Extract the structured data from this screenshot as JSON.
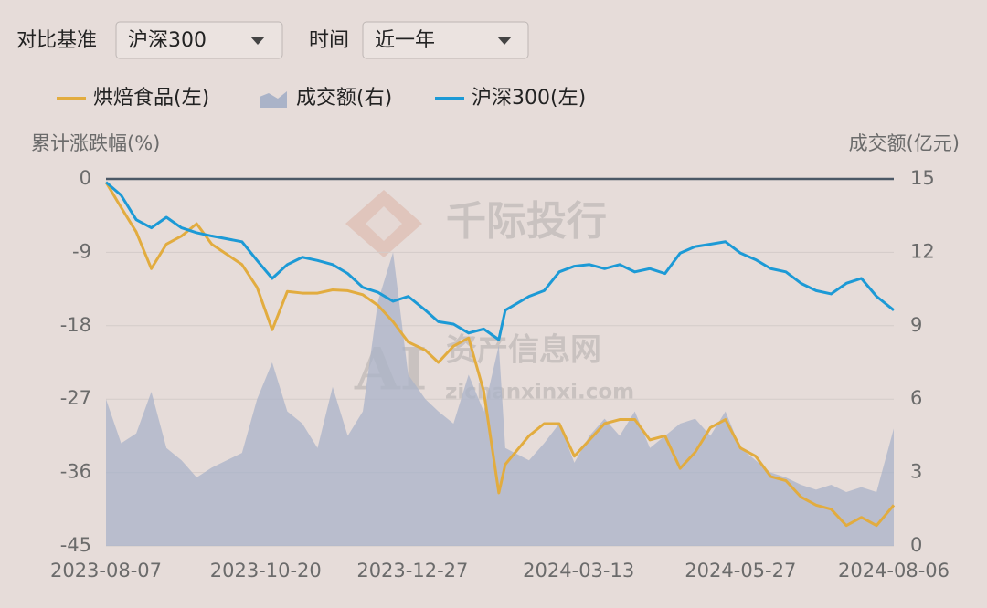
{
  "controls": {
    "benchmark_label": "对比基准",
    "benchmark_value": "沪深300",
    "period_label": "时间",
    "period_value": "近一年"
  },
  "watermarks": [
    "千际投行",
    "资产信息网",
    "zichanxinxi.com"
  ],
  "chart_data": {
    "type": "line",
    "ylabel": "累计涨跌幅(%)",
    "y2label": "成交额(亿元)",
    "x": [
      "2023-08-07",
      "2023-08-14",
      "2023-08-21",
      "2023-08-28",
      "2023-09-04",
      "2023-09-11",
      "2023-09-18",
      "2023-09-25",
      "2023-10-09",
      "2023-10-16",
      "2023-10-23",
      "2023-10-30",
      "2023-11-06",
      "2023-11-13",
      "2023-11-20",
      "2023-11-27",
      "2023-12-04",
      "2023-12-11",
      "2023-12-18",
      "2023-12-25",
      "2024-01-02",
      "2024-01-08",
      "2024-01-15",
      "2024-01-22",
      "2024-01-29",
      "2024-02-05",
      "2024-02-08",
      "2024-02-19",
      "2024-02-26",
      "2024-03-04",
      "2024-03-11",
      "2024-03-18",
      "2024-03-25",
      "2024-04-01",
      "2024-04-08",
      "2024-04-15",
      "2024-04-22",
      "2024-04-29",
      "2024-05-06",
      "2024-05-13",
      "2024-05-20",
      "2024-05-27",
      "2024-06-03",
      "2024-06-10",
      "2024-06-17",
      "2024-06-24",
      "2024-07-01",
      "2024-07-08",
      "2024-07-15",
      "2024-07-22",
      "2024-07-29",
      "2024-08-06"
    ],
    "xlim": [
      "2023-08-07",
      "2024-08-06"
    ],
    "xticks": [
      "2023-08-07",
      "2023-10-20",
      "2023-12-27",
      "2024-03-13",
      "2024-05-27",
      "2024-08-06"
    ],
    "ylim": [
      -45,
      0
    ],
    "yticks": [
      0,
      -9,
      -18,
      -27,
      -36,
      -45
    ],
    "y2lim": [
      0,
      15
    ],
    "y2ticks": [
      15,
      12,
      9,
      6,
      3,
      0
    ],
    "grid": true,
    "series": [
      {
        "name": "烘焙食品(左)",
        "color": "#e2ac3f",
        "values": [
          -0.4,
          -3.5,
          -6.5,
          -11,
          -8,
          -7,
          -5.5,
          -8,
          -10.5,
          -13.3,
          -18.5,
          -13.8,
          -14,
          -14,
          -13.6,
          -13.7,
          -14.2,
          -15.5,
          -17.5,
          -20,
          -21,
          -22.5,
          -20.5,
          -19.5,
          -26,
          -38.5,
          -35,
          -31.5,
          -30,
          -30,
          -34,
          -32,
          -30,
          -29.5,
          -29.5,
          -32,
          -31.5,
          -35.5,
          -33.5,
          -30.5,
          -29.5,
          -33,
          -34,
          -36.5,
          -37,
          -39,
          -40,
          -40.5,
          -42.5,
          -41.5,
          -42.5,
          -40
        ]
      },
      {
        "name": "成交额(右)",
        "color": "#aab3c8",
        "type": "area",
        "axis": "y2",
        "values": [
          6,
          4.2,
          4.6,
          6.3,
          4,
          3.5,
          2.8,
          3.2,
          3.8,
          6,
          7.5,
          5.5,
          5,
          4,
          6.5,
          4.5,
          5.5,
          10,
          12,
          7,
          6,
          5.5,
          5,
          7,
          5.5,
          8.2,
          4,
          3.5,
          4.2,
          5,
          3.4,
          4.5,
          5.2,
          4.5,
          5.5,
          4,
          4.5,
          5,
          5.2,
          4.5,
          5.5,
          4,
          3.5,
          3,
          2.8,
          2.5,
          2.3,
          2.5,
          2.2,
          2.4,
          2.2,
          4.8
        ]
      },
      {
        "name": "沪深300(左)",
        "color": "#1c9ad6",
        "values": [
          -0.4,
          -2,
          -5,
          -6,
          -4.7,
          -6,
          -6.6,
          -7,
          -7.7,
          -10,
          -12.2,
          -10.5,
          -9.6,
          -10,
          -10.5,
          -11.6,
          -13.3,
          -13.9,
          -15,
          -14.4,
          -16.1,
          -17.5,
          -17.8,
          -18.9,
          -18.4,
          -19.7,
          -16.1,
          -14.4,
          -13.7,
          -11.4,
          -10.7,
          -10.5,
          -11,
          -10.5,
          -11.4,
          -11,
          -11.6,
          -9.1,
          -8.3,
          -8,
          -7.7,
          -9.1,
          -9.9,
          -11,
          -11.4,
          -12.8,
          -13.7,
          -14.1,
          -12.8,
          -12.2,
          -14.4,
          -16.1
        ]
      }
    ]
  }
}
